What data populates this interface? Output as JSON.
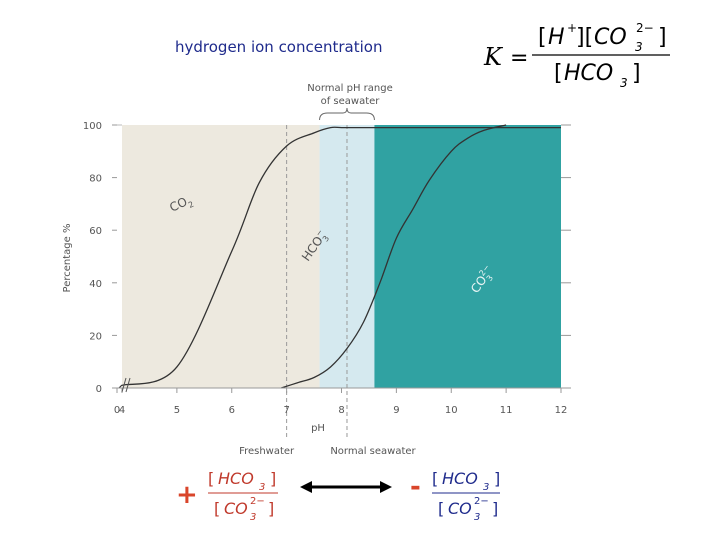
{
  "caption": "hydrogen ion concentration",
  "equation": {
    "lhs": "K",
    "eq": "=",
    "num_h": "H",
    "num_h_sup": "+",
    "num_co": "CO",
    "num_co_sub": "3",
    "num_co_sup": "2−",
    "den_hco": "HCO",
    "den_hco_sub": "3"
  },
  "bottom": {
    "plus": "+",
    "minus": "-",
    "frac_num": "HCO",
    "frac_num_sub": "3",
    "frac_den": "CO",
    "frac_den_sub": "3",
    "frac_den_sup": "2−",
    "plus_color": "#d9452b",
    "minus_color": "#d9452b"
  },
  "chart_data": {
    "type": "line",
    "xlabel": "pH",
    "ylabel": "Percentage %",
    "xlim": [
      4,
      12
    ],
    "ylim": [
      0,
      100
    ],
    "x_ticks": [
      "0",
      "4",
      "5",
      "6",
      "7",
      "8",
      "9",
      "10",
      "11",
      "12"
    ],
    "y_ticks": [
      "0",
      "20",
      "40",
      "60",
      "80",
      "100"
    ],
    "x_break": "0-4",
    "grid": false,
    "regions": [
      {
        "label": "",
        "from": 4,
        "to": 7.6,
        "color": "#ede9df"
      },
      {
        "label": "Normal pH range of seawater",
        "from": 7.6,
        "to": 8.6,
        "color": "#d5e9ef"
      },
      {
        "label": "",
        "from": 8.6,
        "to": 12,
        "color": "#30a2a2"
      }
    ],
    "markers": [
      {
        "label": "Freshwater",
        "x": 7.0
      },
      {
        "label": "Normal seawater",
        "x": 8.1
      }
    ],
    "series": [
      {
        "name": "CO2",
        "label_main": "CO",
        "label_sub": "2",
        "x": [
          4.0,
          4.5,
          5.0,
          5.5,
          6.0,
          6.3,
          6.5,
          7.0,
          7.5,
          8.0,
          8.5,
          9.0,
          10.0
        ],
        "y": [
          1,
          3,
          8,
          24,
          52,
          70,
          78,
          92,
          98,
          99,
          99.5,
          100,
          100
        ]
      },
      {
        "name": "HCO3-",
        "label_main": "HCO",
        "label_sub": "3",
        "label_sup": "−",
        "x": [
          4.0,
          5.0,
          6.0,
          6.5,
          7.0,
          7.5,
          7.8,
          8.0,
          8.3,
          8.6,
          9.0,
          9.5,
          10.0,
          10.5,
          11.0,
          11.5,
          12.0
        ],
        "y": [
          1,
          8,
          52,
          78,
          92,
          97,
          99,
          99,
          99,
          99,
          99,
          99,
          99,
          99,
          99,
          99,
          99
        ]
      },
      {
        "name": "CO3 2-",
        "label_main": "CO",
        "label_sub": "3",
        "label_sup": "2−",
        "x": [
          6.9,
          7.2,
          7.5,
          7.8,
          8.1,
          8.4,
          8.7,
          9.0,
          9.3,
          9.6,
          10.0,
          10.3,
          10.6,
          11.0
        ],
        "y": [
          0,
          2,
          4,
          8,
          15,
          25,
          40,
          57,
          68,
          79,
          90,
          95,
          98,
          100
        ]
      }
    ]
  }
}
